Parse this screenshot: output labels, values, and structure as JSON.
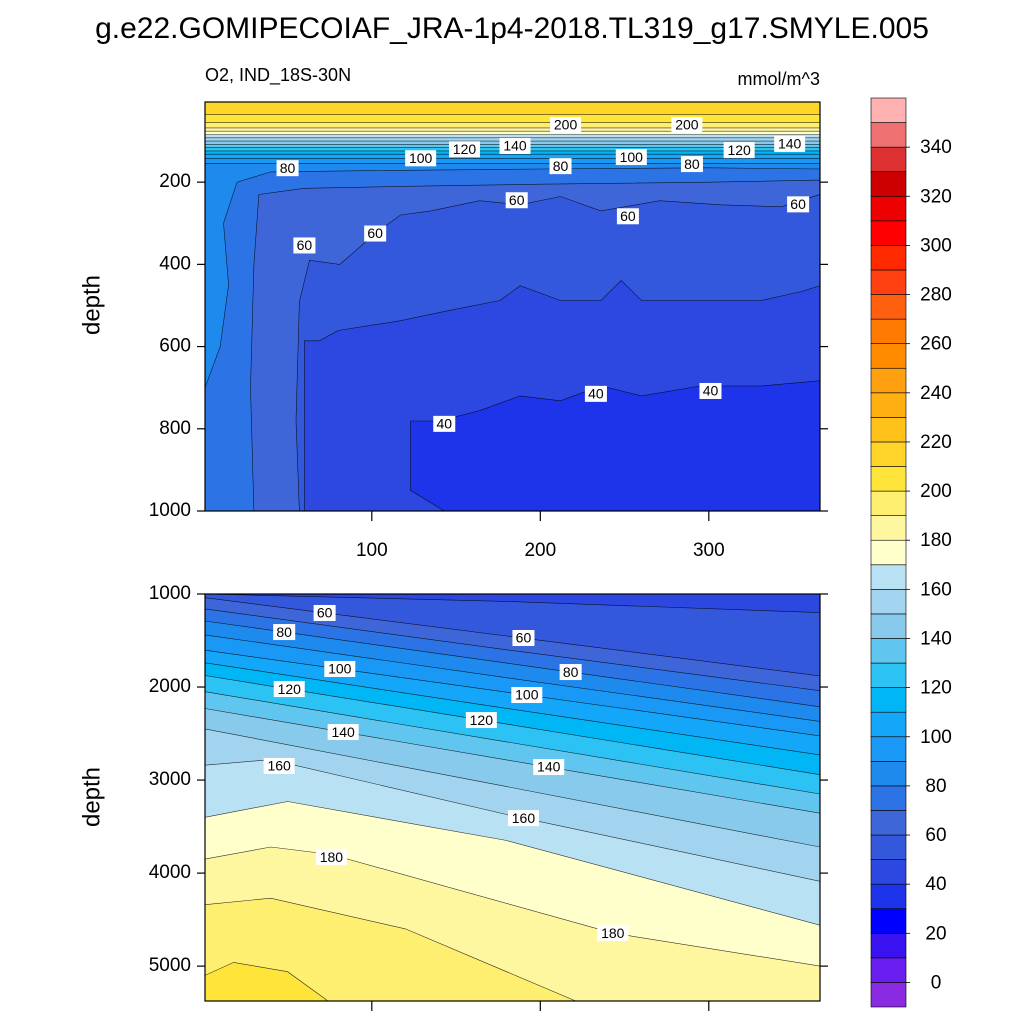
{
  "title": "g.e22.GOMIPECOIAF_JRA-1p4-2018.TL319_g17.SMYLE.005",
  "chart_data": [
    {
      "type": "contour",
      "subtitle_left": "O2, IND_18S-30N",
      "subtitle_right": "mmol/m^3",
      "ylabel": "depth",
      "xlim": [
        1,
        366
      ],
      "ylim": [
        5,
        1000
      ],
      "y_reversed": true,
      "xticks": [
        100,
        200,
        300
      ],
      "show_xtick_labels": true,
      "yticks": [
        200,
        400,
        600,
        800,
        1000
      ],
      "fill_below": "lower",
      "base_level": 210,
      "contours": [
        {
          "level": 210,
          "x": [
            1,
            366
          ],
          "y": [
            35,
            35
          ]
        },
        {
          "level": 200,
          "x": [
            1,
            366
          ],
          "y": [
            55,
            55
          ]
        },
        {
          "level": 190,
          "x": [
            1,
            366
          ],
          "y": [
            68,
            68
          ]
        },
        {
          "level": 180,
          "x": [
            1,
            366
          ],
          "y": [
            76,
            76
          ]
        },
        {
          "level": 170,
          "x": [
            1,
            366
          ],
          "y": [
            84,
            84
          ]
        },
        {
          "level": 160,
          "x": [
            1,
            366
          ],
          "y": [
            92,
            92
          ]
        },
        {
          "level": 150,
          "x": [
            1,
            366
          ],
          "y": [
            100,
            100
          ]
        },
        {
          "level": 140,
          "x": [
            1,
            366
          ],
          "y": [
            108,
            108
          ]
        },
        {
          "level": 130,
          "x": [
            1,
            366
          ],
          "y": [
            116,
            116
          ]
        },
        {
          "level": 120,
          "x": [
            1,
            366
          ],
          "y": [
            124,
            124
          ]
        },
        {
          "level": 110,
          "x": [
            1,
            366
          ],
          "y": [
            132,
            132
          ]
        },
        {
          "level": 100,
          "x": [
            1,
            366
          ],
          "y": [
            142,
            142
          ]
        },
        {
          "level": 90,
          "x": [
            1,
            366
          ],
          "y": [
            155,
            155
          ]
        },
        {
          "level": 80,
          "x": [
            1,
            1,
            10,
            15,
            12,
            20,
            40,
            100,
            200,
            300,
            366,
            366
          ],
          "y": [
            1000,
            700,
            600,
            450,
            300,
            200,
            175,
            172,
            168,
            165,
            168,
            1000
          ]
        },
        {
          "level": 70,
          "x": [
            30,
            28,
            30,
            33,
            60,
            120,
            200,
            300,
            366,
            366
          ],
          "y": [
            1000,
            700,
            400,
            230,
            215,
            210,
            205,
            200,
            195,
            1000
          ]
        },
        {
          "level": 60,
          "x": [
            57,
            55,
            57,
            63,
            81,
            102,
            117,
            135,
            164,
            188,
            212,
            236,
            271,
            307,
            343,
            366,
            366
          ],
          "y": [
            1000,
            780,
            490,
            390,
            400,
            325,
            280,
            270,
            245,
            255,
            235,
            270,
            245,
            255,
            260,
            230,
            1000
          ]
        },
        {
          "level": 50,
          "x": [
            60,
            60,
            69,
            80,
            117,
            146,
            176,
            188,
            212,
            236,
            248,
            260,
            295,
            331,
            355,
            366,
            366
          ],
          "y": [
            1000,
            586,
            586,
            561,
            537,
            512,
            488,
            452,
            488,
            488,
            439,
            488,
            488,
            488,
            466,
            452,
            1000
          ]
        },
        {
          "level": 40,
          "x": [
            143,
            123,
            123,
            140,
            164,
            188,
            212,
            236,
            260,
            295,
            331,
            366,
            366
          ],
          "y": [
            1000,
            950,
            781,
            781,
            756,
            720,
            732,
            696,
            720,
            696,
            696,
            683,
            1000
          ]
        }
      ],
      "labels": [
        {
          "value": 200,
          "x": 215,
          "y": 61
        },
        {
          "value": 200,
          "x": 287,
          "y": 61
        },
        {
          "value": 100,
          "x": 129,
          "y": 142
        },
        {
          "value": 120,
          "x": 155,
          "y": 120
        },
        {
          "value": 140,
          "x": 185,
          "y": 112
        },
        {
          "value": 140,
          "x": 348,
          "y": 107
        },
        {
          "value": 120,
          "x": 318,
          "y": 122
        },
        {
          "value": 80,
          "x": 50,
          "y": 166
        },
        {
          "value": 80,
          "x": 212,
          "y": 161
        },
        {
          "value": 100,
          "x": 254,
          "y": 139
        },
        {
          "value": 80,
          "x": 290,
          "y": 156
        },
        {
          "value": 60,
          "x": 186,
          "y": 244
        },
        {
          "value": 60,
          "x": 252,
          "y": 283
        },
        {
          "value": 60,
          "x": 353,
          "y": 254
        },
        {
          "value": 60,
          "x": 60,
          "y": 354
        },
        {
          "value": 60,
          "x": 102,
          "y": 325
        },
        {
          "value": 40,
          "x": 143,
          "y": 788
        },
        {
          "value": 40,
          "x": 233,
          "y": 715
        },
        {
          "value": 40,
          "x": 301,
          "y": 708
        }
      ]
    },
    {
      "type": "contour",
      "ylabel": "depth",
      "xlim": [
        1,
        366
      ],
      "ylim": [
        1000,
        5375
      ],
      "y_reversed": true,
      "xticks": [
        100,
        200,
        300
      ],
      "show_xtick_labels": false,
      "yticks": [
        1000,
        2000,
        3000,
        4000,
        5000
      ],
      "fill_below": "higher",
      "base_level": 40,
      "contours": [
        {
          "level": 50,
          "x": [
            1,
            180,
            366
          ],
          "y": [
            1000,
            1080,
            1200
          ]
        },
        {
          "level": 60,
          "x": [
            1,
            180,
            366
          ],
          "y": [
            1040,
            1452,
            1880
          ]
        },
        {
          "level": 70,
          "x": [
            1,
            180,
            366
          ],
          "y": [
            1160,
            1600,
            2040
          ]
        },
        {
          "level": 80,
          "x": [
            1,
            180,
            366
          ],
          "y": [
            1290,
            1743,
            2213
          ]
        },
        {
          "level": 90,
          "x": [
            1,
            180,
            366
          ],
          "y": [
            1440,
            1900,
            2370
          ]
        },
        {
          "level": 100,
          "x": [
            1,
            180,
            366
          ],
          "y": [
            1604,
            2056,
            2525
          ]
        },
        {
          "level": 110,
          "x": [
            1,
            180,
            366
          ],
          "y": [
            1740,
            2230,
            2730
          ]
        },
        {
          "level": 120,
          "x": [
            1,
            180,
            366
          ],
          "y": [
            1876,
            2399,
            2942
          ]
        },
        {
          "level": 130,
          "x": [
            1,
            180,
            366
          ],
          "y": [
            2050,
            2590,
            3150
          ]
        },
        {
          "level": 140,
          "x": [
            1,
            180,
            366
          ],
          "y": [
            2231,
            2783,
            3356
          ]
        },
        {
          "level": 150,
          "x": [
            1,
            180,
            366
          ],
          "y": [
            2450,
            3070,
            3720
          ]
        },
        {
          "level": 160,
          "x": [
            1,
            40,
            180,
            366
          ],
          "y": [
            2840,
            2780,
            3370,
            4088
          ]
        },
        {
          "level": 170,
          "x": [
            1,
            50,
            180,
            366
          ],
          "y": [
            3400,
            3230,
            3650,
            4560
          ]
        },
        {
          "level": 180,
          "x": [
            1,
            40,
            76,
            243,
            366
          ],
          "y": [
            3850,
            3720,
            3800,
            4645,
            5000
          ]
        },
        {
          "level": 190,
          "x": [
            1,
            40,
            120,
            221
          ],
          "y": [
            4340,
            4270,
            4600,
            5375
          ]
        },
        {
          "level": 200,
          "x": [
            1,
            18,
            50,
            74
          ],
          "y": [
            5100,
            4960,
            5060,
            5375
          ]
        }
      ],
      "labels": [
        {
          "value": 60,
          "x": 72,
          "y": 1204
        },
        {
          "value": 60,
          "x": 190,
          "y": 1473
        },
        {
          "value": 80,
          "x": 48,
          "y": 1409
        },
        {
          "value": 80,
          "x": 218,
          "y": 1839
        },
        {
          "value": 100,
          "x": 81,
          "y": 1806
        },
        {
          "value": 100,
          "x": 192,
          "y": 2086
        },
        {
          "value": 120,
          "x": 51,
          "y": 2022
        },
        {
          "value": 120,
          "x": 165,
          "y": 2355
        },
        {
          "value": 140,
          "x": 83,
          "y": 2484
        },
        {
          "value": 140,
          "x": 205,
          "y": 2860
        },
        {
          "value": 160,
          "x": 45,
          "y": 2849
        },
        {
          "value": 160,
          "x": 190,
          "y": 3409
        },
        {
          "value": 180,
          "x": 76,
          "y": 3828
        },
        {
          "value": 180,
          "x": 243,
          "y": 4645
        }
      ]
    }
  ],
  "colorbar": {
    "levels": [
      -10,
      0,
      10,
      20,
      30,
      40,
      50,
      60,
      70,
      80,
      90,
      100,
      110,
      120,
      130,
      140,
      150,
      160,
      170,
      180,
      190,
      200,
      210,
      220,
      230,
      240,
      250,
      260,
      270,
      280,
      290,
      300,
      310,
      320,
      330,
      340,
      350,
      360
    ],
    "colors": [
      "#8a2be2",
      "#6a1ef0",
      "#3a12f0",
      "#0000ff",
      "#1e34ea",
      "#2c48e0",
      "#3458dc",
      "#3f66d8",
      "#2c74e6",
      "#1e8aee",
      "#1a98f5",
      "#14a6f8",
      "#00b6f4",
      "#2cc2f4",
      "#60c6f0",
      "#88caec",
      "#a2d4f0",
      "#b8e2f4",
      "#ffffcc",
      "#fff6a0",
      "#ffef70",
      "#ffe53a",
      "#ffd52a",
      "#ffc21a",
      "#ffb010",
      "#ffa010",
      "#ff8c00",
      "#ff7a00",
      "#ff6010",
      "#ff4010",
      "#ff2a00",
      "#ff0000",
      "#ee0000",
      "#cc0000",
      "#dd3030",
      "#ee7070",
      "#ffb0b0"
    ],
    "ticks": [
      0,
      20,
      40,
      60,
      80,
      100,
      120,
      140,
      160,
      180,
      200,
      220,
      240,
      260,
      280,
      300,
      320,
      340
    ]
  }
}
